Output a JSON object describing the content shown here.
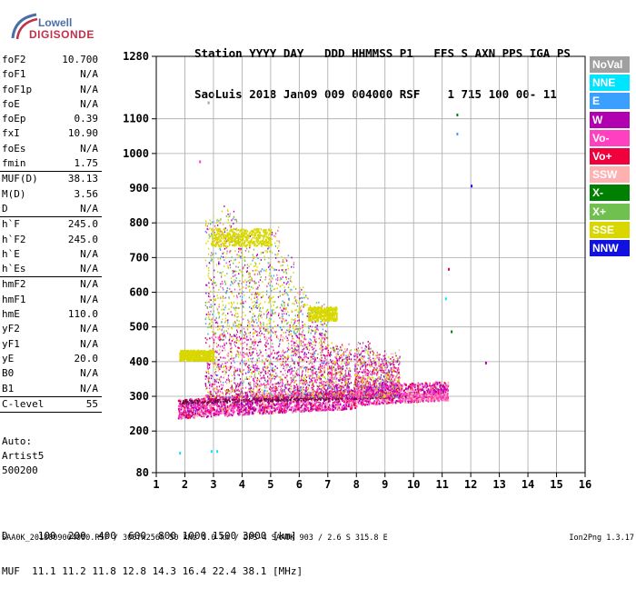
{
  "logo": {
    "line1": "Lowell",
    "line2": "DIGISONDE"
  },
  "header": {
    "line1": "Station YYYY DAY   DDD HHMMSS P1   FFS S AXN PPS IGA PS",
    "line2": "SaoLuis 2018 Jan09 009 004000 RSF    1 715 100 00- 11"
  },
  "params": [
    {
      "name": "foF2",
      "value": "10.700"
    },
    {
      "name": "foF1",
      "value": "N/A"
    },
    {
      "name": "foF1p",
      "value": "N/A"
    },
    {
      "name": "foE",
      "value": "N/A"
    },
    {
      "name": "foEp",
      "value": "0.39"
    },
    {
      "name": "fxI",
      "value": "10.90"
    },
    {
      "name": "foEs",
      "value": "N/A"
    },
    {
      "name": "fmin",
      "value": "1.75"
    },
    {
      "name": "MUF(D)",
      "value": "38.13",
      "sep": true
    },
    {
      "name": "M(D)",
      "value": "3.56"
    },
    {
      "name": "D",
      "value": "N/A"
    },
    {
      "name": "h`F",
      "value": "245.0",
      "sep": true
    },
    {
      "name": "h`F2",
      "value": "245.0"
    },
    {
      "name": "h`E",
      "value": "N/A"
    },
    {
      "name": "h`Es",
      "value": "N/A"
    },
    {
      "name": "hmF2",
      "value": "N/A",
      "sep": true
    },
    {
      "name": "hmF1",
      "value": "N/A"
    },
    {
      "name": "hmE",
      "value": "110.0"
    },
    {
      "name": "yF2",
      "value": "N/A"
    },
    {
      "name": "yF1",
      "value": "N/A"
    },
    {
      "name": "yE",
      "value": "20.0"
    },
    {
      "name": "B0",
      "value": "N/A"
    },
    {
      "name": "B1",
      "value": "N/A"
    },
    {
      "name": "C-level",
      "value": "55",
      "sep": true
    }
  ],
  "auto": {
    "line1": "Auto:",
    "line2": "Artist5",
    "line3": "500200"
  },
  "footer": {
    "d_line": "D     100  200  400  600  800 1000 1500 3000 [km]",
    "muf_line": "MUF  11.1 11.2 11.8 12.8 14.3 16.4 22.4 38.1 [MHz]"
  },
  "bottom": {
    "info": "SAA0K_2018009004000.RSF / 300fx256h 50 kHz 5.0 km / DPS-4 SAA0K 903 / 2.6 S 315.8 E",
    "version": "Ion2Png 1.3.17"
  },
  "legend": [
    {
      "label": "NoVal",
      "color": "#a0a0a0"
    },
    {
      "label": "NNE",
      "color": "#00e5ff"
    },
    {
      "label": "E",
      "color": "#3aa0ff"
    },
    {
      "label": "W",
      "color": "#b000b0"
    },
    {
      "label": "Vo-",
      "color": "#ff40c0"
    },
    {
      "label": "Vo+",
      "color": "#f0003c"
    },
    {
      "label": "SSW",
      "color": "#ffb0b0"
    },
    {
      "label": "X-",
      "color": "#008000"
    },
    {
      "label": "X+",
      "color": "#70c050"
    },
    {
      "label": "SSE",
      "color": "#d8d800"
    },
    {
      "label": "NNW",
      "color": "#1010e0"
    }
  ],
  "chart_data": {
    "type": "scatter",
    "x_ticks": [
      1,
      2,
      3,
      4,
      5,
      6,
      7,
      8,
      9,
      10,
      11,
      12,
      13,
      14,
      15,
      16
    ],
    "y_ticks": [
      80,
      200,
      300,
      400,
      500,
      600,
      700,
      800,
      900,
      1000,
      1100,
      1280
    ],
    "xlim": [
      1,
      16
    ],
    "ylim": [
      80,
      1280
    ],
    "grid": true,
    "regions": [
      {
        "name": "F-trace",
        "x_range": [
          1.75,
          11.2
        ],
        "h_range": [
          240,
          320
        ],
        "density": "high"
      },
      {
        "name": "F-spread",
        "x_range": [
          2.7,
          9.5
        ],
        "h_range": [
          300,
          850
        ],
        "density": "medium"
      }
    ]
  }
}
